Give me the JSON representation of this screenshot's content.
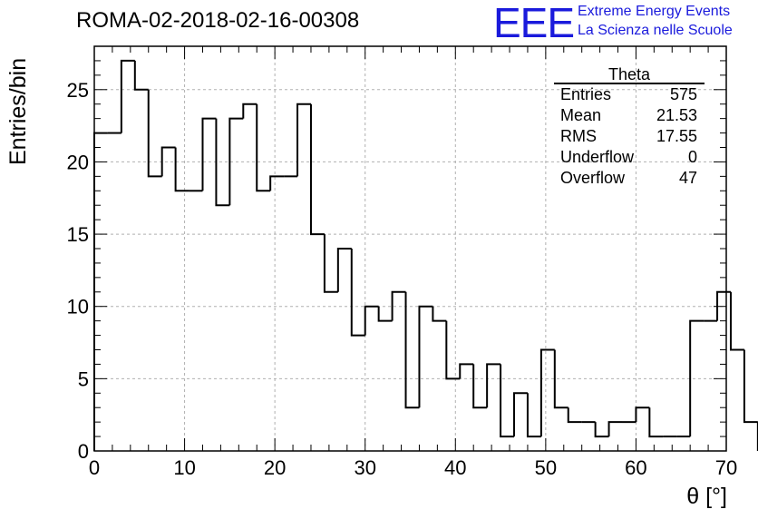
{
  "header": {
    "title": "ROMA-02-2018-02-16-00308",
    "logo_text": "EEE",
    "logo_line1": "Extreme Energy Events",
    "logo_line2": "La Scienza nelle Scuole"
  },
  "stats_box": {
    "name": "Theta",
    "rows": [
      {
        "label": "Entries",
        "value": "575"
      },
      {
        "label": "Mean",
        "value": "21.53"
      },
      {
        "label": "RMS",
        "value": "17.55"
      },
      {
        "label": "Underflow",
        "value": "0"
      },
      {
        "label": "Overflow",
        "value": "47"
      }
    ]
  },
  "chart_data": {
    "type": "bar",
    "style": "step-histogram",
    "xlabel": "θ [°]",
    "ylabel": "Entries/bin",
    "xlim": [
      0,
      70
    ],
    "ylim": [
      0,
      28
    ],
    "grid": true,
    "bin_width": 1.5,
    "bin_edges_start": 0,
    "values": [
      22,
      22,
      27,
      25,
      19,
      21,
      18,
      18,
      23,
      17,
      23,
      24,
      18,
      19,
      19,
      24,
      15,
      11,
      14,
      8,
      10,
      9,
      11,
      3,
      10,
      9,
      5,
      6,
      3,
      6,
      1,
      4,
      1,
      7,
      3,
      2,
      2,
      1,
      2,
      2,
      3,
      1,
      1,
      1,
      9,
      9,
      11,
      7,
      2
    ],
    "x_ticks": [
      0,
      10,
      20,
      30,
      40,
      50,
      60,
      70
    ],
    "y_ticks": [
      0,
      5,
      10,
      15,
      20,
      25
    ],
    "line_color": "#000000",
    "grid_color": "#b0b0b0"
  }
}
